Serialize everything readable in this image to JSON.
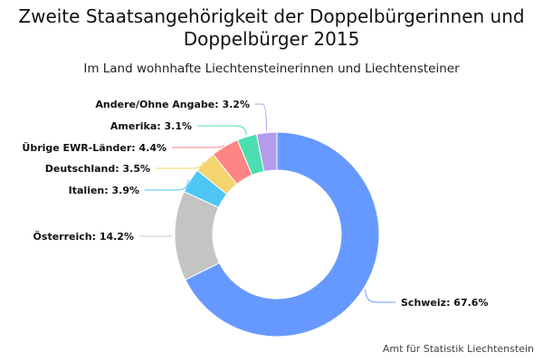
{
  "chart_data": {
    "type": "pie",
    "variant": "donut",
    "title": "Zweite Staatsangehörigkeit der Doppelbürgerinnen und Doppelbürger 2015",
    "subtitle": "Im Land wohnhafte Liechtensteinerinnen und Liechtensteiner",
    "credit": "Amt für Statistik Liechtenstein",
    "slices": [
      {
        "label": "Schweiz",
        "value": 67.6,
        "display": "Schweiz: 67.6%",
        "color": "#6699ff"
      },
      {
        "label": "Österreich",
        "value": 14.2,
        "display": "Österreich: 14.2%",
        "color": "#c4c4c4"
      },
      {
        "label": "Italien",
        "value": 3.9,
        "display": "Italien: 3.9%",
        "color": "#4fc7f5"
      },
      {
        "label": "Deutschland",
        "value": 3.5,
        "display": "Deutschland: 3.5%",
        "color": "#f5d36e"
      },
      {
        "label": "Übrige EWR-Länder",
        "value": 4.4,
        "display": "Übrige EWR-Länder: 4.4%",
        "color": "#ff8585"
      },
      {
        "label": "Amerika",
        "value": 3.1,
        "display": "Amerika: 3.1%",
        "color": "#4cdeb0"
      },
      {
        "label": "Andere/Ohne Angabe",
        "value": 3.2,
        "display": "Andere/Ohne Angabe: 3.2%",
        "color": "#b49cec"
      }
    ]
  }
}
